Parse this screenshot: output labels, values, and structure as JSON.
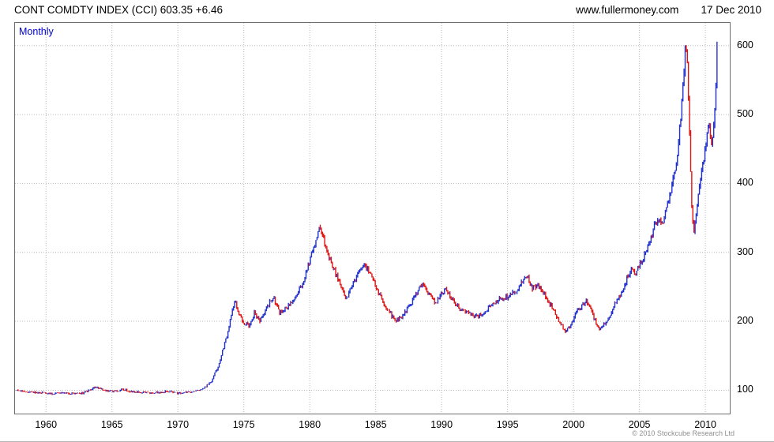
{
  "header": {
    "title": "CONT COMDTY INDEX (CCI) 603.35 +6.46",
    "website": "www.fullermoney.com",
    "date": "17 Dec 2010"
  },
  "chart": {
    "timeframe_label": "Monthly",
    "copyright": "© 2010 Stockcube Research Ltd",
    "colors": {
      "up_bar": "#1f2fd0",
      "down_bar": "#e11414",
      "grid": "#b8b8b8",
      "frame": "#6e6e6e",
      "timeframe_text": "#0000cc",
      "axis_text": "#000000",
      "copyright_text": "#8f8f8f"
    }
  },
  "chart_data": {
    "type": "candlestick",
    "title": "CONT COMDTY INDEX (CCI)",
    "timeframe": "Monthly",
    "last_close": 603.35,
    "change": "+6.46",
    "x_ticks": [
      1960,
      1965,
      1970,
      1975,
      1980,
      1985,
      1990,
      1995,
      2000,
      2005,
      2010
    ],
    "y_ticks": [
      100,
      200,
      300,
      400,
      500,
      600
    ],
    "x_range": [
      1957.65,
      2011.85
    ],
    "y_range": [
      66,
      633
    ],
    "grid": "dotted",
    "legend": "none",
    "series_anchors_monthly_close": [
      [
        1957.8,
        100
      ],
      [
        1958.3,
        99
      ],
      [
        1959.0,
        97
      ],
      [
        1959.8,
        96
      ],
      [
        1960.5,
        95
      ],
      [
        1961.3,
        96
      ],
      [
        1962.0,
        95
      ],
      [
        1962.8,
        96
      ],
      [
        1963.3,
        100
      ],
      [
        1963.7,
        104
      ],
      [
        1964.1,
        102
      ],
      [
        1964.6,
        99
      ],
      [
        1965.2,
        98
      ],
      [
        1965.8,
        101
      ],
      [
        1966.3,
        99
      ],
      [
        1967.0,
        97
      ],
      [
        1967.8,
        96
      ],
      [
        1968.5,
        97
      ],
      [
        1969.3,
        98
      ],
      [
        1970.0,
        96
      ],
      [
        1970.8,
        97
      ],
      [
        1971.5,
        99
      ],
      [
        1972.0,
        103
      ],
      [
        1972.5,
        112
      ],
      [
        1973.0,
        132
      ],
      [
        1973.4,
        158
      ],
      [
        1973.8,
        185
      ],
      [
        1974.1,
        215
      ],
      [
        1974.35,
        228
      ],
      [
        1974.7,
        208
      ],
      [
        1975.0,
        198
      ],
      [
        1975.4,
        194
      ],
      [
        1975.8,
        212
      ],
      [
        1976.2,
        200
      ],
      [
        1976.6,
        214
      ],
      [
        1977.0,
        229
      ],
      [
        1977.3,
        232
      ],
      [
        1977.7,
        212
      ],
      [
        1978.1,
        218
      ],
      [
        1978.6,
        228
      ],
      [
        1979.1,
        243
      ],
      [
        1979.6,
        262
      ],
      [
        1980.0,
        288
      ],
      [
        1980.4,
        312
      ],
      [
        1980.75,
        340
      ],
      [
        1981.0,
        322
      ],
      [
        1981.4,
        298
      ],
      [
        1981.9,
        272
      ],
      [
        1982.4,
        248
      ],
      [
        1982.8,
        234
      ],
      [
        1983.2,
        252
      ],
      [
        1983.7,
        270
      ],
      [
        1984.1,
        281
      ],
      [
        1984.6,
        272
      ],
      [
        1985.0,
        250
      ],
      [
        1985.5,
        230
      ],
      [
        1986.0,
        214
      ],
      [
        1986.5,
        199
      ],
      [
        1987.0,
        207
      ],
      [
        1987.5,
        221
      ],
      [
        1988.0,
        236
      ],
      [
        1988.4,
        254
      ],
      [
        1988.8,
        248
      ],
      [
        1989.2,
        237
      ],
      [
        1989.6,
        226
      ],
      [
        1990.0,
        241
      ],
      [
        1990.4,
        246
      ],
      [
        1990.8,
        232
      ],
      [
        1991.3,
        220
      ],
      [
        1991.8,
        214
      ],
      [
        1992.3,
        209
      ],
      [
        1992.8,
        206
      ],
      [
        1993.3,
        215
      ],
      [
        1993.8,
        224
      ],
      [
        1994.3,
        231
      ],
      [
        1994.8,
        234
      ],
      [
        1995.3,
        239
      ],
      [
        1995.8,
        247
      ],
      [
        1996.2,
        260
      ],
      [
        1996.5,
        264
      ],
      [
        1996.9,
        248
      ],
      [
        1997.3,
        252
      ],
      [
        1997.7,
        243
      ],
      [
        1998.1,
        230
      ],
      [
        1998.6,
        212
      ],
      [
        1999.0,
        196
      ],
      [
        1999.4,
        186
      ],
      [
        1999.8,
        194
      ],
      [
        2000.2,
        212
      ],
      [
        2000.6,
        222
      ],
      [
        2001.0,
        229
      ],
      [
        2001.3,
        218
      ],
      [
        2001.7,
        198
      ],
      [
        2001.95,
        186
      ],
      [
        2002.3,
        194
      ],
      [
        2002.7,
        205
      ],
      [
        2003.0,
        221
      ],
      [
        2003.4,
        233
      ],
      [
        2003.8,
        246
      ],
      [
        2004.1,
        266
      ],
      [
        2004.4,
        276
      ],
      [
        2004.7,
        267
      ],
      [
        2005.0,
        281
      ],
      [
        2005.4,
        296
      ],
      [
        2005.8,
        316
      ],
      [
        2006.1,
        336
      ],
      [
        2006.4,
        349
      ],
      [
        2006.7,
        338
      ],
      [
        2007.0,
        359
      ],
      [
        2007.3,
        381
      ],
      [
        2007.6,
        408
      ],
      [
        2007.9,
        443
      ],
      [
        2008.1,
        490
      ],
      [
        2008.35,
        552
      ],
      [
        2008.5,
        615
      ],
      [
        2008.65,
        572
      ],
      [
        2008.8,
        470
      ],
      [
        2008.95,
        370
      ],
      [
        2009.1,
        327
      ],
      [
        2009.3,
        356
      ],
      [
        2009.6,
        402
      ],
      [
        2009.9,
        438
      ],
      [
        2010.1,
        472
      ],
      [
        2010.25,
        496
      ],
      [
        2010.45,
        452
      ],
      [
        2010.6,
        470
      ],
      [
        2010.75,
        522
      ],
      [
        2010.87,
        562
      ],
      [
        2010.95,
        603
      ]
    ]
  }
}
